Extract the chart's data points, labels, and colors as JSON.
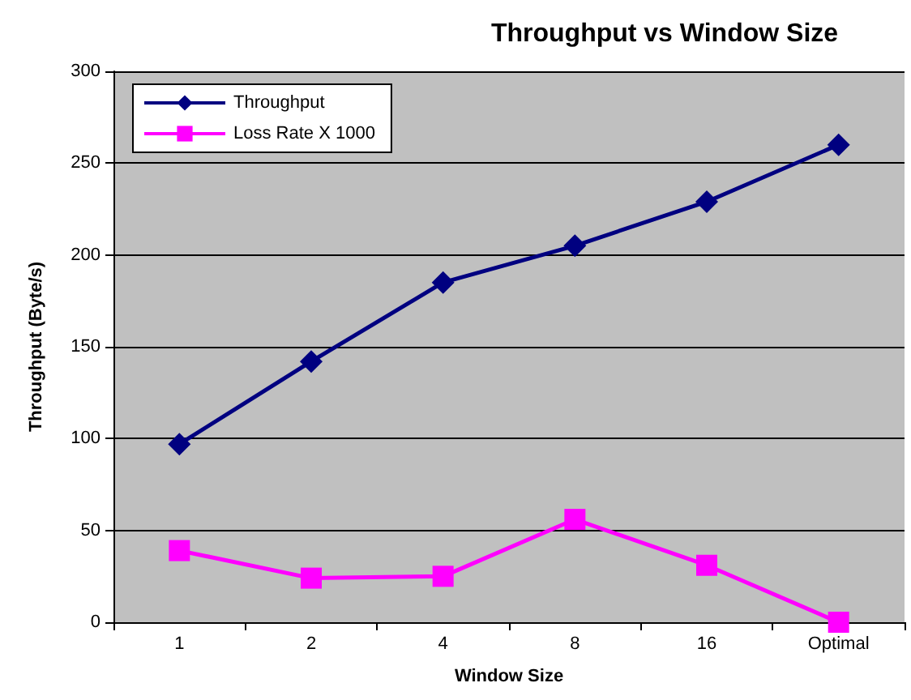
{
  "chart_data": {
    "type": "line",
    "title": "Throughput vs Window Size",
    "xlabel": "Window Size",
    "ylabel": "Throughput (Byte/s)",
    "categories": [
      "1",
      "2",
      "4",
      "8",
      "16",
      "Optimal"
    ],
    "series": [
      {
        "name": "Throughput",
        "color": "#000080",
        "marker": "diamond",
        "values": [
          97,
          142,
          185,
          205,
          229,
          260
        ]
      },
      {
        "name": "Loss Rate X 1000",
        "color": "#ff00ff",
        "marker": "square",
        "values": [
          39,
          24,
          25,
          56,
          31,
          0
        ]
      }
    ],
    "ylim": [
      0,
      300
    ],
    "yticks": [
      0,
      50,
      100,
      150,
      200,
      250,
      300
    ],
    "grid": "y",
    "legend": "top left",
    "line_style": "solid"
  }
}
